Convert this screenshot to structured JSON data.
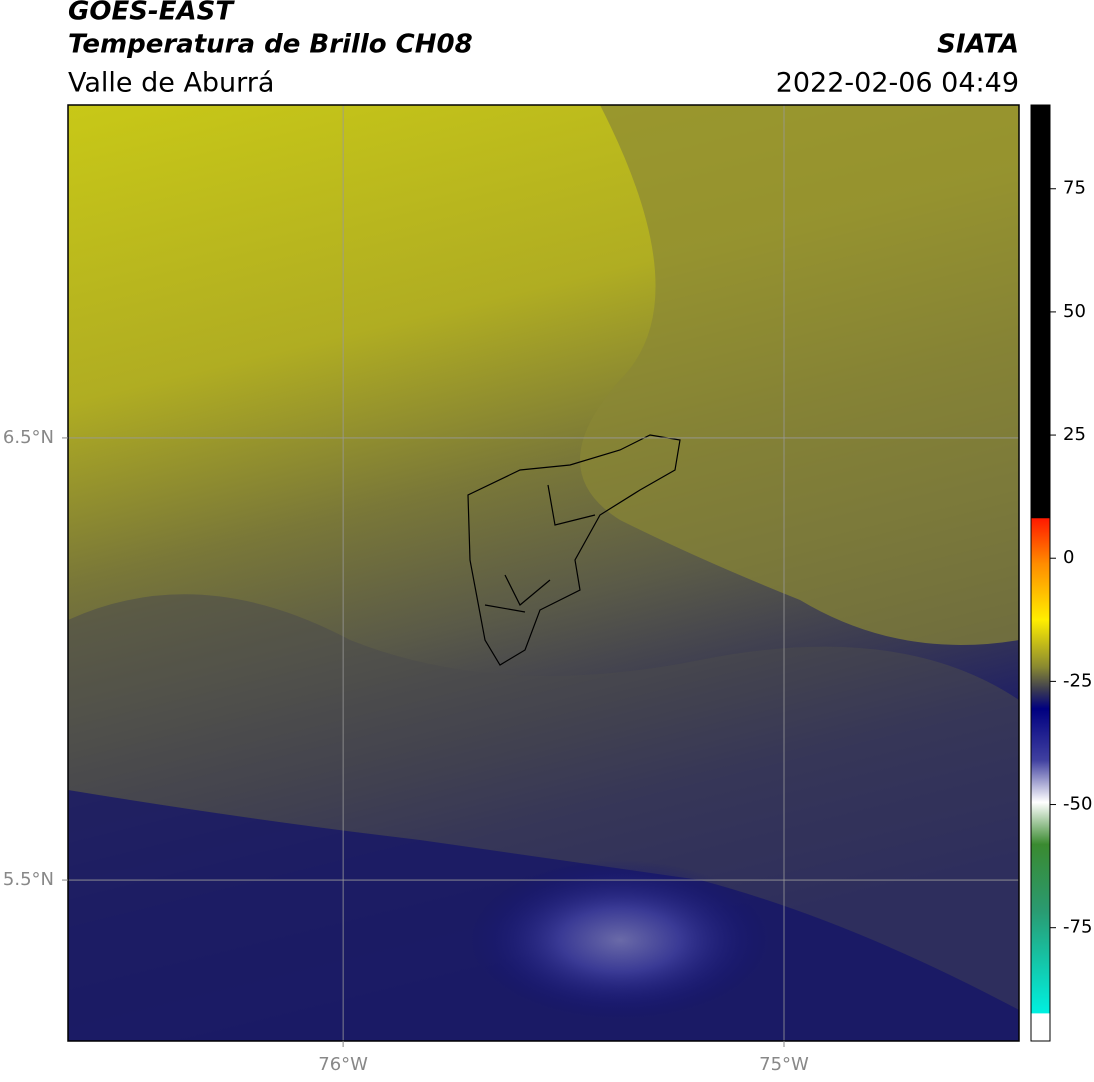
{
  "header": {
    "title": "GOES-EAST",
    "subtitle": "Temperatura de Brillo CH08",
    "region": "Valle de Aburrá",
    "source": "SIATA",
    "datetime": "2022-02-06 04:49"
  },
  "map": {
    "xlim": [
      -76.624,
      -74.467
    ],
    "ylim": [
      5.136,
      7.253
    ],
    "xticks": [
      {
        "value": -76,
        "label": "76°W"
      },
      {
        "value": -75,
        "label": "75°W"
      }
    ],
    "yticks": [
      {
        "value": 6.5,
        "label": "6.5°N"
      },
      {
        "value": 5.5,
        "label": "5.5°N"
      }
    ],
    "grid": true
  },
  "colorbar": {
    "lim": [
      -98,
      92
    ],
    "ticks": [
      75,
      50,
      25,
      0,
      -25,
      -50,
      -75
    ]
  }
}
